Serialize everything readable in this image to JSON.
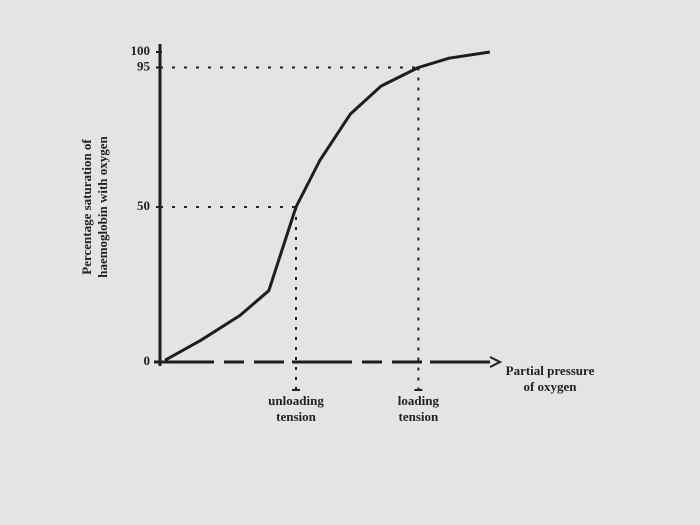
{
  "chart_data": {
    "type": "line",
    "y_label": [
      "Percentage saturation of",
      "haemoglobin with oxygen"
    ],
    "x_label": [
      "Partial pressure",
      "of oxygen"
    ],
    "x": [
      1.5,
      12,
      23.5,
      32,
      40,
      47,
      56,
      65,
      76,
      85,
      97
    ],
    "series": [
      {
        "color": "#1e1e1e",
        "values": [
          0.6,
          7,
          15,
          23,
          50,
          65,
          80,
          89,
          95,
          98,
          100
        ]
      }
    ],
    "xlim": [
      0,
      100
    ],
    "ylim": [
      0,
      100
    ],
    "yticks": [
      0,
      50,
      95,
      100
    ],
    "annotations": [
      {
        "text": [
          "unloading",
          "tension"
        ],
        "x": 40,
        "y": 50
      },
      {
        "text": [
          "loading",
          "tension"
        ],
        "x": 76,
        "y": 95
      }
    ]
  }
}
